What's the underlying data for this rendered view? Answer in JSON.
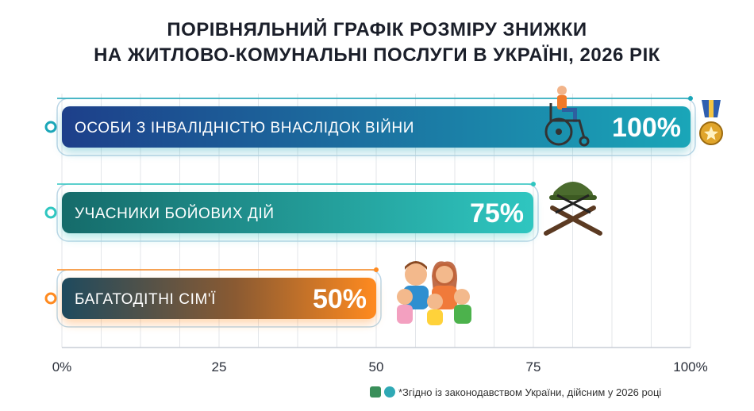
{
  "title": {
    "line1": "ПОРІВНЯЛЬНИЙ ГРАФІК РОЗМІРУ ЗНИЖКИ",
    "line2": "НА ЖИТЛОВО-КОМУНАЛЬНІ ПОСЛУГИ В УКРАЇНІ, 2026 РІК"
  },
  "footnote": "*Згідно із законодавством України, дійсним у 2026 році",
  "chart_data": {
    "type": "bar",
    "orientation": "horizontal",
    "categories": [
      "ОСОБИ З ІНВАЛІДНІСТЮ ВНАСЛІДОК ВІЙНИ",
      "УЧАСНИКИ БОЙОВИХ ДІЙ",
      "БАГАТОДІТНІ СІМ'Ї"
    ],
    "values": [
      100,
      75,
      50
    ],
    "value_labels": [
      "100%",
      "75%",
      "50%"
    ],
    "xlim": [
      0,
      100
    ],
    "x_ticks": [
      0,
      25,
      50,
      75,
      100
    ],
    "x_tick_labels": [
      "0%",
      "25",
      "50",
      "75",
      "100%"
    ],
    "grid": true,
    "colors": [
      [
        "#1d3f8a",
        "#1aa6b8"
      ],
      [
        "#156b6a",
        "#2fc6c0"
      ],
      [
        "#1e4a5e",
        "#ff8a1f"
      ]
    ],
    "icons": [
      "wheelchair-icon",
      "helmet-rifles-icon",
      "family-icon",
      "medal-icon"
    ]
  }
}
